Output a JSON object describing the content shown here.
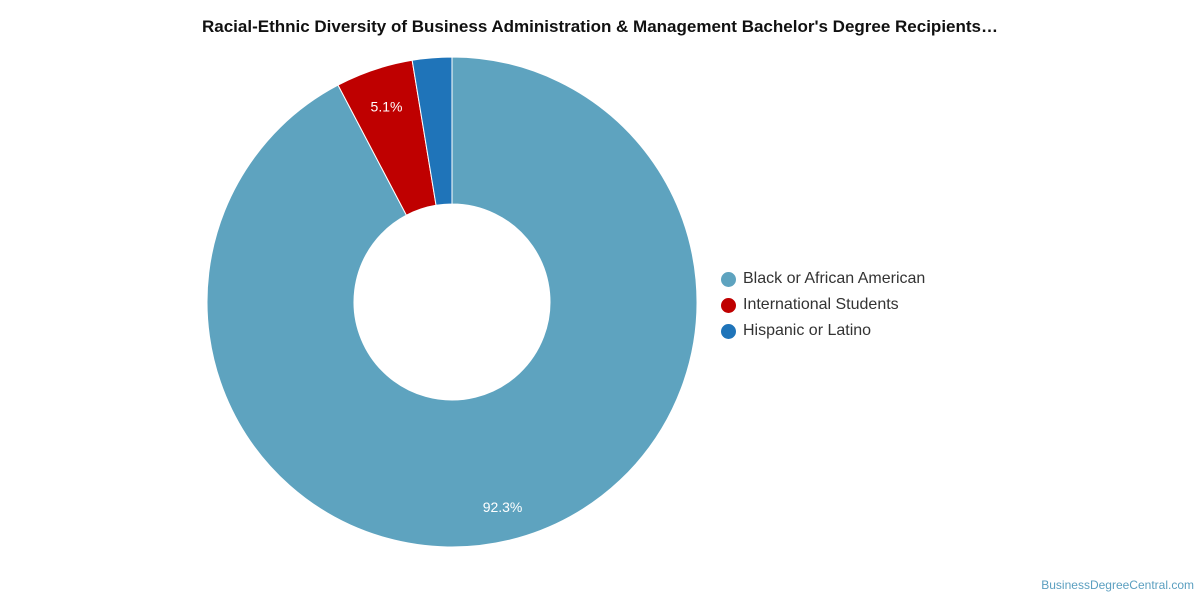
{
  "chart_data": {
    "type": "pie",
    "subtype": "donut",
    "title": "Racial-Ethnic Diversity of Business Administration & Management Bachelor's Degree Recipients…",
    "categories": [
      "Black or African American",
      "International Students",
      "Hispanic or Latino"
    ],
    "values": [
      92.3,
      5.1,
      2.6
    ],
    "data_labels": [
      "92.3%",
      "5.1%",
      ""
    ],
    "colors": [
      "#5ea3bf",
      "#bf0000",
      "#1f74b9"
    ],
    "unit": "%",
    "legend_position": "right",
    "start_angle_deg": 0,
    "direction": "clockwise"
  },
  "watermark": "BusinessDegreeCentral.com"
}
